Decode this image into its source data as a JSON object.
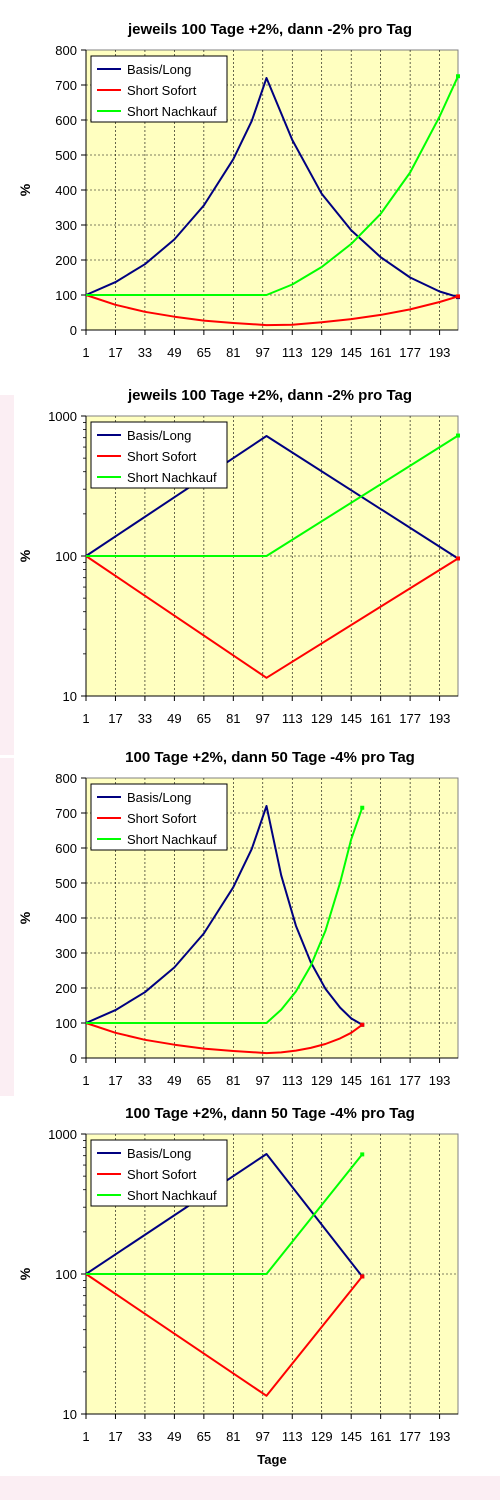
{
  "chart_data": [
    {
      "type": "line",
      "title": "jeweils 100 Tage +2%, dann -2% pro Tag",
      "xlabel": "",
      "ylabel": "%",
      "scale": "linear",
      "ylim": [
        0,
        800
      ],
      "yticks": [
        "0",
        "100",
        "200",
        "300",
        "400",
        "500",
        "600",
        "700",
        "800"
      ],
      "xlim": [
        1,
        203
      ],
      "xticks": [
        "1",
        "17",
        "33",
        "49",
        "65",
        "81",
        "97",
        "113",
        "129",
        "145",
        "161",
        "177",
        "193"
      ],
      "grid": "dashed",
      "legend_position": "top-left",
      "series": [
        {
          "name": "Basis/Long",
          "color": "#000080",
          "points": [
            [
              1,
              100
            ],
            [
              17,
              137
            ],
            [
              33,
              188
            ],
            [
              49,
              259
            ],
            [
              65,
              356
            ],
            [
              81,
              488
            ],
            [
              91,
              597
            ],
            [
              99,
              720
            ],
            [
              113,
              543
            ],
            [
              129,
              389
            ],
            [
              145,
              285
            ],
            [
              161,
              208
            ],
            [
              177,
              150
            ],
            [
              193,
              110
            ],
            [
              203,
              94
            ]
          ]
        },
        {
          "name": "Short Sofort",
          "color": "#ff0000",
          "points": [
            [
              1,
              100
            ],
            [
              17,
              72
            ],
            [
              33,
              52
            ],
            [
              49,
              38
            ],
            [
              65,
              27
            ],
            [
              81,
              20
            ],
            [
              99,
              14
            ],
            [
              113,
              15
            ],
            [
              129,
              22
            ],
            [
              145,
              31
            ],
            [
              161,
              43
            ],
            [
              177,
              59
            ],
            [
              193,
              80
            ],
            [
              203,
              96
            ]
          ]
        },
        {
          "name": "Short Nachkauf",
          "color": "#00ff00",
          "points": [
            [
              1,
              100
            ],
            [
              99,
              100
            ],
            [
              113,
              130
            ],
            [
              129,
              180
            ],
            [
              145,
              246
            ],
            [
              161,
              332
            ],
            [
              177,
              450
            ],
            [
              193,
              610
            ],
            [
              203,
              725
            ]
          ]
        }
      ]
    },
    {
      "type": "line",
      "title": "jeweils 100 Tage +2%, dann -2% pro Tag",
      "xlabel": "",
      "ylabel": "%",
      "scale": "log",
      "ylim": [
        10,
        1000
      ],
      "yticks": [
        "10",
        "100",
        "1000"
      ],
      "xlim": [
        1,
        203
      ],
      "xticks": [
        "1",
        "17",
        "33",
        "49",
        "65",
        "81",
        "97",
        "113",
        "129",
        "145",
        "161",
        "177",
        "193"
      ],
      "grid": "dashed",
      "legend_position": "top-left",
      "series": [
        {
          "name": "Basis/Long",
          "color": "#000080",
          "points": [
            [
              1,
              100
            ],
            [
              99,
              720
            ],
            [
              203,
              96
            ]
          ]
        },
        {
          "name": "Short Sofort",
          "color": "#ff0000",
          "points": [
            [
              1,
              100
            ],
            [
              99,
              13.5
            ],
            [
              203,
              96
            ]
          ]
        },
        {
          "name": "Short Nachkauf",
          "color": "#00ff00",
          "points": [
            [
              1,
              100
            ],
            [
              99,
              100
            ],
            [
              203,
              725
            ]
          ]
        }
      ]
    },
    {
      "type": "line",
      "title": "100 Tage +2%, dann 50 Tage -4% pro Tag",
      "xlabel": "",
      "ylabel": "%",
      "scale": "linear",
      "ylim": [
        0,
        800
      ],
      "yticks": [
        "0",
        "100",
        "200",
        "300",
        "400",
        "500",
        "600",
        "700",
        "800"
      ],
      "xlim": [
        1,
        203
      ],
      "xticks": [
        "1",
        "17",
        "33",
        "49",
        "65",
        "81",
        "97",
        "113",
        "129",
        "145",
        "161",
        "177",
        "193"
      ],
      "grid": "dashed",
      "legend_position": "top-left",
      "series": [
        {
          "name": "Basis/Long",
          "color": "#000080",
          "points": [
            [
              1,
              100
            ],
            [
              17,
              137
            ],
            [
              33,
              188
            ],
            [
              49,
              259
            ],
            [
              65,
              356
            ],
            [
              81,
              488
            ],
            [
              91,
              597
            ],
            [
              99,
              720
            ],
            [
              107,
              522
            ],
            [
              115,
              378
            ],
            [
              123,
              274
            ],
            [
              131,
              198
            ],
            [
              139,
              144
            ],
            [
              145,
              113
            ],
            [
              151,
              95
            ]
          ]
        },
        {
          "name": "Short Sofort",
          "color": "#ff0000",
          "points": [
            [
              1,
              100
            ],
            [
              17,
              72
            ],
            [
              33,
              52
            ],
            [
              49,
              38
            ],
            [
              65,
              27
            ],
            [
              81,
              20
            ],
            [
              99,
              14
            ],
            [
              107,
              16
            ],
            [
              115,
              21
            ],
            [
              123,
              29
            ],
            [
              131,
              40
            ],
            [
              139,
              56
            ],
            [
              145,
              72
            ],
            [
              151,
              95
            ]
          ]
        },
        {
          "name": "Short Nachkauf",
          "color": "#00ff00",
          "points": [
            [
              1,
              100
            ],
            [
              99,
              100
            ],
            [
              107,
              138
            ],
            [
              115,
              190
            ],
            [
              123,
              263
            ],
            [
              131,
              363
            ],
            [
              139,
              501
            ],
            [
              145,
              625
            ],
            [
              151,
              715
            ]
          ]
        }
      ]
    },
    {
      "type": "line",
      "title": "100 Tage +2%, dann 50 Tage -4% pro Tag",
      "xlabel": "Tage",
      "ylabel": "%",
      "scale": "log",
      "ylim": [
        10,
        1000
      ],
      "yticks": [
        "10",
        "100",
        "1000"
      ],
      "xlim": [
        1,
        203
      ],
      "xticks": [
        "1",
        "17",
        "33",
        "49",
        "65",
        "81",
        "97",
        "113",
        "129",
        "145",
        "161",
        "177",
        "193"
      ],
      "grid": "dashed",
      "legend_position": "top-left",
      "series": [
        {
          "name": "Basis/Long",
          "color": "#000080",
          "points": [
            [
              1,
              100
            ],
            [
              99,
              720
            ],
            [
              151,
              96
            ]
          ]
        },
        {
          "name": "Short Sofort",
          "color": "#ff0000",
          "points": [
            [
              1,
              100
            ],
            [
              99,
              13.5
            ],
            [
              151,
              96
            ]
          ]
        },
        {
          "name": "Short Nachkauf",
          "color": "#00ff00",
          "points": [
            [
              1,
              100
            ],
            [
              99,
              100
            ],
            [
              151,
              715
            ]
          ]
        }
      ]
    }
  ]
}
